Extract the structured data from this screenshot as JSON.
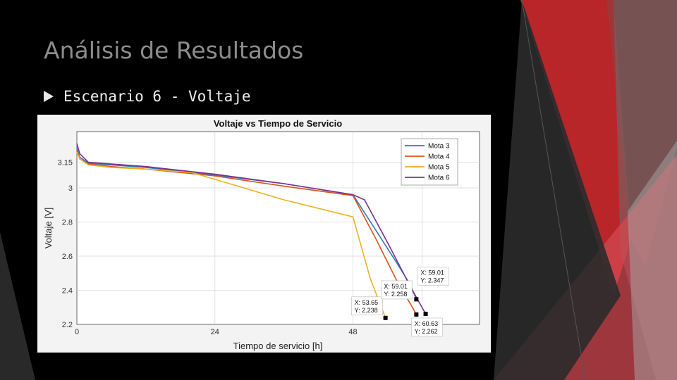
{
  "slide": {
    "title": "Análisis de Resultados",
    "bullet": "Escenario 6 - Voltaje"
  },
  "colors": {
    "background": "#000000",
    "accent_red": "#c0282b",
    "title_gray": "#8c8c8c"
  },
  "chart_data": {
    "type": "line",
    "title": "Voltaje vs Tiempo de Servicio",
    "xlabel": "Tiempo de servicio [h]",
    "ylabel": "Voltaje [V]",
    "xlim": [
      0,
      70
    ],
    "ylim": [
      2.2,
      3.33
    ],
    "xticks": [
      0,
      24,
      48,
      60
    ],
    "yticks": [
      2.2,
      2.4,
      2.6,
      2.8,
      3,
      3.15
    ],
    "ytick_labels": [
      "2.2",
      "2.4",
      "2.6",
      "2.8",
      "3",
      "3.15"
    ],
    "grid": true,
    "legend_position": "top-right",
    "series": [
      {
        "name": "Mota 3",
        "color": "#2b7bb9",
        "x": [
          0,
          0.5,
          2,
          6,
          12,
          24,
          36,
          48,
          52,
          56,
          58,
          59.01
        ],
        "y": [
          3.23,
          3.18,
          3.145,
          3.135,
          3.12,
          3.075,
          3.025,
          2.96,
          2.75,
          2.54,
          2.43,
          2.347
        ]
      },
      {
        "name": "Mota 4",
        "color": "#d95319",
        "x": [
          0,
          0.5,
          2,
          6,
          12,
          24,
          36,
          48,
          52,
          56,
          58,
          59.01
        ],
        "y": [
          3.22,
          3.17,
          3.14,
          3.125,
          3.11,
          3.07,
          3.01,
          2.955,
          2.7,
          2.43,
          2.32,
          2.258
        ]
      },
      {
        "name": "Mota 5",
        "color": "#edb120",
        "x": [
          0,
          0.5,
          2,
          6,
          12,
          20,
          24,
          36,
          48,
          51,
          53.65
        ],
        "y": [
          3.21,
          3.17,
          3.135,
          3.12,
          3.11,
          3.09,
          3.05,
          2.93,
          2.83,
          2.47,
          2.238
        ]
      },
      {
        "name": "Mota 6",
        "color": "#7e2f8e",
        "x": [
          0,
          0.5,
          2,
          6,
          12,
          24,
          36,
          48,
          50,
          54,
          58,
          60.63
        ],
        "y": [
          3.26,
          3.2,
          3.15,
          3.14,
          3.125,
          3.08,
          3.025,
          2.96,
          2.93,
          2.68,
          2.42,
          2.262
        ]
      }
    ],
    "datatips": [
      {
        "x_label": "X: 59.01",
        "y_label": "Y: 2.347",
        "x": 59.01,
        "y": 2.347
      },
      {
        "x_label": "X: 53.65",
        "y_label": "Y: 2.238",
        "x": 53.65,
        "y": 2.238
      },
      {
        "x_label": "X: 59.01",
        "y_label": "Y: 2.258",
        "x": 59.01,
        "y": 2.258
      },
      {
        "x_label": "X: 60.63",
        "y_label": "Y: 2.262",
        "x": 60.63,
        "y": 2.262
      }
    ]
  }
}
